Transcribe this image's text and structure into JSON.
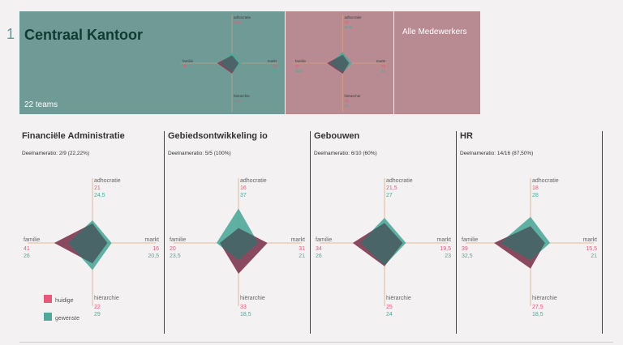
{
  "page_number": "1",
  "banner": {
    "title": "Centraal Kantoor",
    "teams": "22 teams",
    "all_staff": "Alle Medewerkers",
    "mini_labels": {
      "top": "adhocratie",
      "bottom": "hiërarchie",
      "left": "familie",
      "right": "markt"
    }
  },
  "axes": {
    "top": "adhocratie",
    "bottom": "hiërarchie",
    "left": "familie",
    "right": "markt"
  },
  "colors": {
    "current": "#e8587a",
    "desired": "#4fa89a",
    "overlap": "#3b3340",
    "axis": "#e3a77b",
    "teal_banner": "#6f9a95",
    "pink_banner": "#b88a91"
  },
  "departments": [
    {
      "name": "Financiële Administratie",
      "rate": "Deelnameratio: 2/9 (22,22%)",
      "current": {
        "adhocratie": "21",
        "markt": "16",
        "hierarchie": "22",
        "familie": "41"
      },
      "desired": {
        "adhocratie": "24,5",
        "markt": "20,5",
        "hierarchie": "29",
        "familie": "26"
      }
    },
    {
      "name": "Gebiedsontwikkeling io",
      "rate": "Deelnameratio: 5/5 (100%)",
      "current": {
        "adhocratie": "16",
        "markt": "31",
        "hierarchie": "33",
        "familie": "20"
      },
      "desired": {
        "adhocratie": "37",
        "markt": "21",
        "hierarchie": "18,5",
        "familie": "23,5"
      }
    },
    {
      "name": "Gebouwen",
      "rate": "Deelnameratio: 6/10 (60%)",
      "current": {
        "adhocratie": "21,5",
        "markt": "19,5",
        "hierarchie": "25",
        "familie": "34"
      },
      "desired": {
        "adhocratie": "27",
        "markt": "23",
        "hierarchie": "24",
        "familie": "26"
      }
    },
    {
      "name": "HR",
      "rate": "Deelnameratio: 14/16 (87,50%)",
      "current": {
        "adhocratie": "18",
        "markt": "15,5",
        "hierarchie": "27,5",
        "familie": "39"
      },
      "desired": {
        "adhocratie": "28",
        "markt": "21",
        "hierarchie": "18,5",
        "familie": "32,5"
      }
    }
  ],
  "mini_charts": [
    {
      "current": {
        "adhocratie": "18,5",
        "markt": "16",
        "hierarchie": "24,5",
        "familie": "35"
      },
      "desired": {
        "adhocratie": "25",
        "markt": "22",
        "hierarchie": "21",
        "familie": "27"
      }
    },
    {
      "current": {
        "adhocratie": "20",
        "markt": "15",
        "hierarchie": "25",
        "familie": "37"
      },
      "desired": {
        "adhocratie": "26,5",
        "markt": "21",
        "hierarchie": "22",
        "familie": "30,5"
      }
    }
  ],
  "legend": {
    "current": "huidige",
    "desired": "gewenste"
  }
}
